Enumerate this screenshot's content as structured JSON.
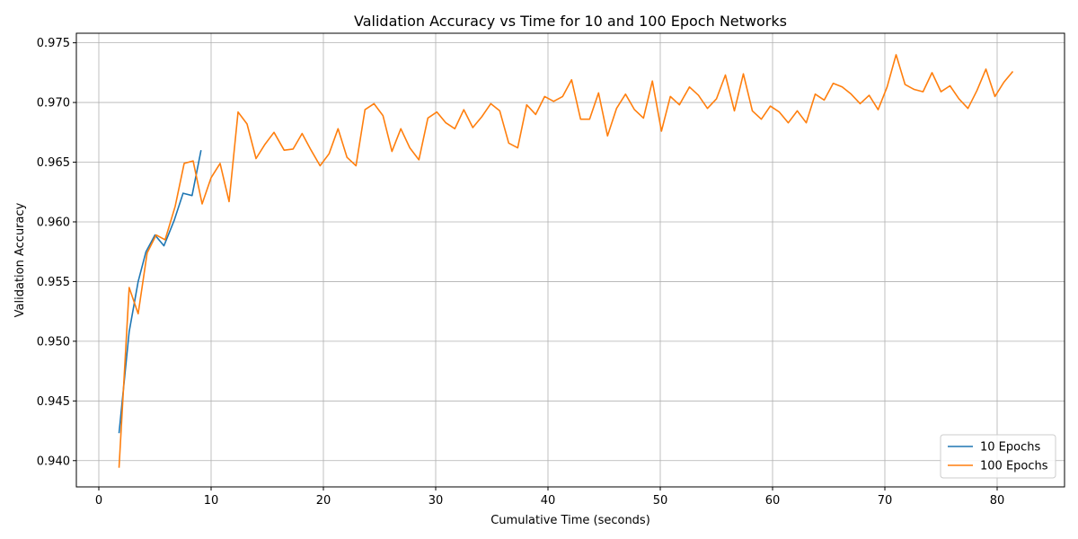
{
  "chart_data": {
    "type": "line",
    "title": "Validation Accuracy vs Time for 10 and 100 Epoch Networks",
    "xlabel": "Cumulative Time (seconds)",
    "ylabel": "Validation Accuracy",
    "xlim": [
      -2,
      86
    ],
    "ylim": [
      0.9378,
      0.9758
    ],
    "xticks": [
      0,
      10,
      20,
      30,
      40,
      50,
      60,
      70,
      80
    ],
    "yticks": [
      0.94,
      0.945,
      0.95,
      0.955,
      0.96,
      0.965,
      0.97,
      0.975
    ],
    "ytick_labels": [
      "0.940",
      "0.945",
      "0.950",
      "0.955",
      "0.960",
      "0.965",
      "0.970",
      "0.975"
    ],
    "grid": true,
    "legend_position": "lower-right",
    "series": [
      {
        "name": "10 Epochs",
        "color": "#1f77b4",
        "x": [
          1.8,
          2.7,
          3.5,
          4.2,
          5.0,
          5.8,
          6.7,
          7.5,
          8.3,
          9.1
        ],
        "y": [
          0.9423,
          0.9508,
          0.955,
          0.9575,
          0.9589,
          0.958,
          0.9601,
          0.9624,
          0.9622,
          0.966
        ]
      },
      {
        "name": "100 Epochs",
        "color": "#ff7f0e",
        "x": [
          1.8,
          2.7,
          3.5,
          4.3,
          5.1,
          5.9,
          6.8,
          7.6,
          8.4,
          9.2,
          10.0,
          10.8,
          11.6,
          12.4,
          13.2,
          14.0,
          14.8,
          15.6,
          16.5,
          17.3,
          18.1,
          18.9,
          19.7,
          20.5,
          21.3,
          22.1,
          22.9,
          23.7,
          24.5,
          25.3,
          26.1,
          26.9,
          27.7,
          28.5,
          29.3,
          30.1,
          30.9,
          31.7,
          32.5,
          33.3,
          34.1,
          34.9,
          35.7,
          36.5,
          37.3,
          38.1,
          38.9,
          39.7,
          40.5,
          41.3,
          42.1,
          42.9,
          43.7,
          44.5,
          45.3,
          46.1,
          46.9,
          47.7,
          48.5,
          49.3,
          50.1,
          50.9,
          51.7,
          52.6,
          53.4,
          54.2,
          55.0,
          55.8,
          56.6,
          57.4,
          58.2,
          59.0,
          59.8,
          60.6,
          61.4,
          62.2,
          63.0,
          63.8,
          64.6,
          65.4,
          66.2,
          67.0,
          67.8,
          68.6,
          69.4,
          70.2,
          71.0,
          71.8,
          72.6,
          73.4,
          74.2,
          75.0,
          75.8,
          76.6,
          77.4,
          78.2,
          79.0,
          79.8,
          80.6,
          81.4
        ],
        "y": [
          0.9394,
          0.9545,
          0.9523,
          0.9574,
          0.9589,
          0.9585,
          0.9613,
          0.9649,
          0.9651,
          0.9615,
          0.9637,
          0.9649,
          0.9617,
          0.9692,
          0.9682,
          0.9653,
          0.9665,
          0.9675,
          0.966,
          0.9661,
          0.9674,
          0.966,
          0.9647,
          0.9657,
          0.9678,
          0.9654,
          0.9647,
          0.9694,
          0.9699,
          0.9689,
          0.9659,
          0.9678,
          0.9662,
          0.9652,
          0.9687,
          0.9692,
          0.9683,
          0.9678,
          0.9694,
          0.9679,
          0.9688,
          0.9699,
          0.9693,
          0.9666,
          0.9662,
          0.9698,
          0.969,
          0.9705,
          0.9701,
          0.9705,
          0.9719,
          0.9686,
          0.9686,
          0.9708,
          0.9672,
          0.9695,
          0.9707,
          0.9694,
          0.9687,
          0.9718,
          0.9676,
          0.9705,
          0.9698,
          0.9713,
          0.9706,
          0.9695,
          0.9703,
          0.9723,
          0.9693,
          0.9724,
          0.9693,
          0.9686,
          0.9697,
          0.9692,
          0.9683,
          0.9693,
          0.9683,
          0.9707,
          0.9702,
          0.9716,
          0.9713,
          0.9707,
          0.9699,
          0.9706,
          0.9694,
          0.9713,
          0.974,
          0.9715,
          0.9711,
          0.9709,
          0.9725,
          0.9709,
          0.9714,
          0.9703,
          0.9695,
          0.971,
          0.9728,
          0.9705,
          0.9717,
          0.9726
        ]
      }
    ]
  }
}
